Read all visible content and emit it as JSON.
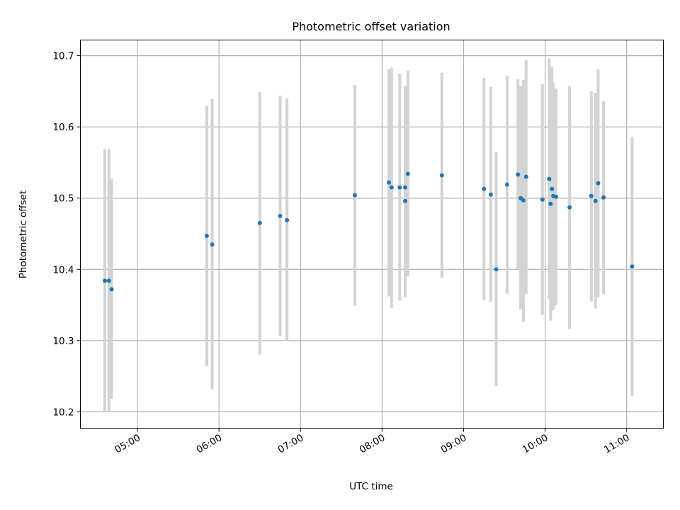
{
  "chart_data": {
    "type": "scatter",
    "title": "Photometric offset variation",
    "xlabel": "UTC time",
    "ylabel": "Photometric offset",
    "xlim": [
      "04:18",
      "11:27"
    ],
    "ylim": [
      10.177,
      10.722
    ],
    "x_ticks": [
      "05:00",
      "06:00",
      "07:00",
      "08:00",
      "09:00",
      "10:00",
      "11:00"
    ],
    "y_ticks": [
      "10.2",
      "10.3",
      "10.4",
      "10.5",
      "10.6",
      "10.7"
    ],
    "grid": true,
    "points": [
      {
        "t": "04:36",
        "y": 10.384,
        "lo": 10.2,
        "hi": 10.569
      },
      {
        "t": "04:39",
        "y": 10.384,
        "lo": 10.2,
        "hi": 10.569
      },
      {
        "t": "04:41",
        "y": 10.372,
        "lo": 10.218,
        "hi": 10.527
      },
      {
        "t": "05:51",
        "y": 10.447,
        "lo": 10.264,
        "hi": 10.63
      },
      {
        "t": "05:55",
        "y": 10.435,
        "lo": 10.232,
        "hi": 10.639
      },
      {
        "t": "06:30",
        "y": 10.465,
        "lo": 10.28,
        "hi": 10.649
      },
      {
        "t": "06:45",
        "y": 10.475,
        "lo": 10.306,
        "hi": 10.644
      },
      {
        "t": "06:50",
        "y": 10.469,
        "lo": 10.3,
        "hi": 10.64
      },
      {
        "t": "07:40",
        "y": 10.504,
        "lo": 10.349,
        "hi": 10.659
      },
      {
        "t": "08:05",
        "y": 10.522,
        "lo": 10.362,
        "hi": 10.681
      },
      {
        "t": "08:07",
        "y": 10.515,
        "lo": 10.346,
        "hi": 10.683
      },
      {
        "t": "08:13",
        "y": 10.515,
        "lo": 10.356,
        "hi": 10.675
      },
      {
        "t": "08:17",
        "y": 10.515,
        "lo": 10.369,
        "hi": 10.658
      },
      {
        "t": "08:17",
        "y": 10.496,
        "lo": 10.361,
        "hi": 10.631
      },
      {
        "t": "08:19",
        "y": 10.534,
        "lo": 10.39,
        "hi": 10.679
      },
      {
        "t": "08:44",
        "y": 10.532,
        "lo": 10.388,
        "hi": 10.676
      },
      {
        "t": "09:15",
        "y": 10.513,
        "lo": 10.357,
        "hi": 10.669
      },
      {
        "t": "09:20",
        "y": 10.505,
        "lo": 10.354,
        "hi": 10.656
      },
      {
        "t": "09:24",
        "y": 10.4,
        "lo": 10.236,
        "hi": 10.565
      },
      {
        "t": "09:32",
        "y": 10.519,
        "lo": 10.366,
        "hi": 10.672
      },
      {
        "t": "09:40",
        "y": 10.533,
        "lo": 10.4,
        "hi": 10.667
      },
      {
        "t": "09:42",
        "y": 10.5,
        "lo": 10.344,
        "hi": 10.657
      },
      {
        "t": "09:44",
        "y": 10.497,
        "lo": 10.326,
        "hi": 10.666
      },
      {
        "t": "09:46",
        "y": 10.53,
        "lo": 10.365,
        "hi": 10.694
      },
      {
        "t": "09:58",
        "y": 10.498,
        "lo": 10.336,
        "hi": 10.66
      },
      {
        "t": "10:03",
        "y": 10.527,
        "lo": 10.358,
        "hi": 10.696
      },
      {
        "t": "10:04",
        "y": 10.492,
        "lo": 10.328,
        "hi": 10.656
      },
      {
        "t": "10:05",
        "y": 10.513,
        "lo": 10.342,
        "hi": 10.684
      },
      {
        "t": "10:06",
        "y": 10.503,
        "lo": 10.344,
        "hi": 10.662
      },
      {
        "t": "10:08",
        "y": 10.502,
        "lo": 10.35,
        "hi": 10.654
      },
      {
        "t": "10:18",
        "y": 10.487,
        "lo": 10.316,
        "hi": 10.657
      },
      {
        "t": "10:34",
        "y": 10.503,
        "lo": 10.355,
        "hi": 10.65
      },
      {
        "t": "10:37",
        "y": 10.496,
        "lo": 10.345,
        "hi": 10.648
      },
      {
        "t": "10:39",
        "y": 10.521,
        "lo": 10.361,
        "hi": 10.681
      },
      {
        "t": "10:43",
        "y": 10.501,
        "lo": 10.365,
        "hi": 10.636
      },
      {
        "t": "11:04",
        "y": 10.404,
        "lo": 10.222,
        "hi": 10.586
      }
    ],
    "colors": {
      "points": "#1f77b4",
      "errorbars": "#d3d3d3",
      "grid": "#b0b0b0"
    }
  }
}
